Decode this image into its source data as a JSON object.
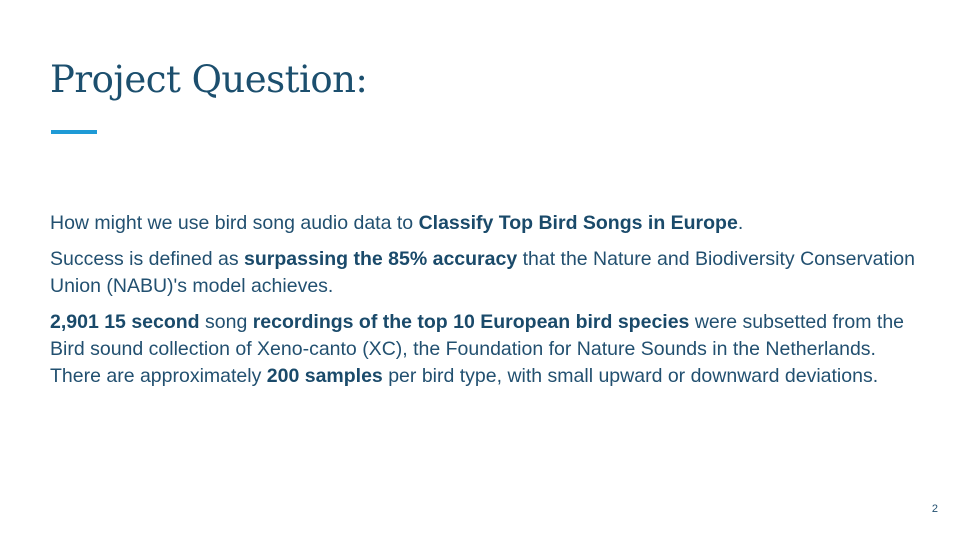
{
  "slide": {
    "title": "Project Question:",
    "page_number": "2",
    "paragraphs": [
      [
        {
          "text": "How might we use bird song audio data to ",
          "bold": false
        },
        {
          "text": "Classify Top Bird Songs in Europe",
          "bold": true
        },
        {
          "text": ".",
          "bold": false
        }
      ],
      [
        {
          "text": "Success is defined as ",
          "bold": false
        },
        {
          "text": "surpassing the 85% accuracy",
          "bold": true
        },
        {
          "text": " that the Nature and Biodiversity Conservation Union (NABU)'s model achieves.",
          "bold": false
        }
      ],
      [
        {
          "text": "2,901 15 second",
          "bold": true
        },
        {
          "text": " song ",
          "bold": false
        },
        {
          "text": "recordings of the top 10 European bird species",
          "bold": true
        },
        {
          "text": " were subsetted from the Bird sound collection of Xeno-canto (XC), the Foundation for Nature Sounds in the Netherlands. There are approximately ",
          "bold": false
        },
        {
          "text": "200 samples",
          "bold": true
        },
        {
          "text": " per bird type, with small upward or downward deviations.",
          "bold": false
        }
      ]
    ]
  },
  "colors": {
    "title": "#1c4f6e",
    "accent": "#1e9ad6",
    "body_text": "#225070"
  }
}
